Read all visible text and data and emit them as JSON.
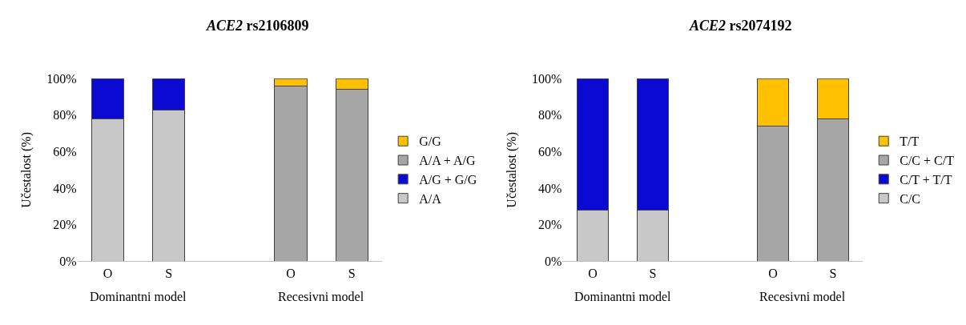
{
  "chart_data": [
    {
      "type": "bar",
      "title": "ACE2 rs2106809",
      "ylabel": "Učestalost (%)",
      "stacked": true,
      "legend": "right",
      "categories": [
        "O",
        "S",
        null,
        "O",
        "S"
      ],
      "series": [
        {
          "name": "A/A",
          "color": "#c8c8c8",
          "values": [
            78,
            83,
            null,
            null,
            null
          ]
        },
        {
          "name": "A/G + G/G",
          "color": "#0a0ad2",
          "values": [
            22,
            17,
            null,
            null,
            null
          ]
        },
        {
          "name": "A/A + A/G",
          "color": "#a6a6a6",
          "values": [
            null,
            null,
            null,
            96,
            94
          ]
        },
        {
          "name": "G/G",
          "color": "#ffc000",
          "values": [
            null,
            null,
            null,
            4,
            6
          ]
        }
      ],
      "ylim": [
        0,
        100
      ],
      "yticks": [
        {
          "value": 0,
          "label": "0%"
        },
        {
          "value": 20,
          "label": "20%"
        },
        {
          "value": 40,
          "label": "40%"
        },
        {
          "value": 60,
          "label": "60%"
        },
        {
          "value": 80,
          "label": "80%"
        },
        {
          "value": 100,
          "label": "100%"
        }
      ],
      "annotations": [
        "Dominantni model",
        "Recesivni model"
      ]
    },
    {
      "type": "bar",
      "title": "ACE2 rs2074192",
      "ylabel": "Učestalost (%)",
      "stacked": true,
      "legend": "right",
      "categories": [
        "O",
        "S",
        null,
        "O",
        "S"
      ],
      "series": [
        {
          "name": "C/C",
          "color": "#c8c8c8",
          "values": [
            28,
            28,
            null,
            null,
            null
          ]
        },
        {
          "name": "C/T + T/T",
          "color": "#0a0ad2",
          "values": [
            72,
            72,
            null,
            null,
            null
          ]
        },
        {
          "name": "C/C + C/T",
          "color": "#a6a6a6",
          "values": [
            null,
            null,
            null,
            74,
            78
          ]
        },
        {
          "name": "T/T",
          "color": "#ffc000",
          "values": [
            null,
            null,
            null,
            26,
            22
          ]
        }
      ],
      "ylim": [
        0,
        100
      ],
      "yticks": [
        {
          "value": 0,
          "label": "0%"
        },
        {
          "value": 20,
          "label": "20%"
        },
        {
          "value": 40,
          "label": "40%"
        },
        {
          "value": 60,
          "label": "60%"
        },
        {
          "value": 80,
          "label": "80%"
        },
        {
          "value": 100,
          "label": "100%"
        }
      ],
      "annotations": [
        "Dominantni model",
        "Recesivni model"
      ]
    }
  ]
}
